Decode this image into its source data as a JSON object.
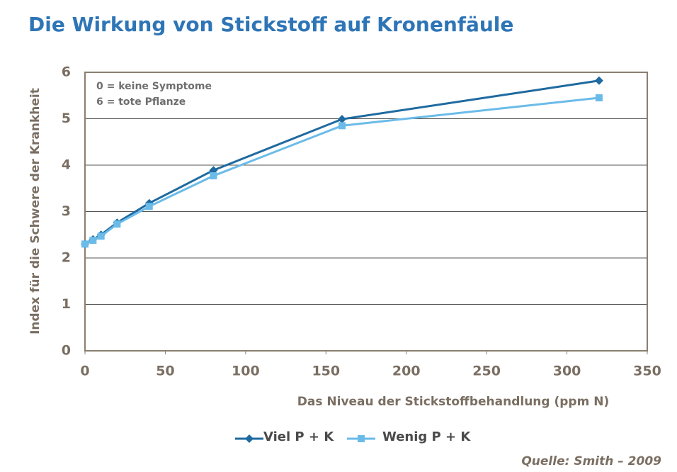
{
  "chart_data": {
    "type": "line",
    "title": "Die Wirkung von Stickstoff auf Kronenfäule",
    "xlabel": "Das Niveau der Stickstoffbehandlung (ppm N)",
    "ylabel": "Index für die Schwere der Krankheit",
    "annotations": [
      "0 = keine Symptome",
      "6 = tote Pflanze"
    ],
    "source": "Quelle: Smith – 2009",
    "x": [
      0,
      5,
      10,
      20,
      40,
      80,
      160,
      320
    ],
    "series": [
      {
        "name": "Viel P + K",
        "color": "#1f6aa0",
        "marker": "diamond",
        "values": [
          2.3,
          2.4,
          2.5,
          2.76,
          3.18,
          3.89,
          4.99,
          5.82
        ]
      },
      {
        "name": "Wenig P + K",
        "color": "#6bbbe8",
        "marker": "square",
        "values": [
          2.3,
          2.38,
          2.47,
          2.73,
          3.11,
          3.77,
          4.85,
          5.45
        ]
      }
    ],
    "xlim": [
      0,
      350
    ],
    "xticks": [
      0,
      50,
      100,
      150,
      200,
      250,
      300,
      350
    ],
    "ylim": [
      0,
      6
    ],
    "yticks": [
      0,
      1,
      2,
      3,
      4,
      5,
      6
    ],
    "grid": true,
    "legend": "bottom"
  }
}
